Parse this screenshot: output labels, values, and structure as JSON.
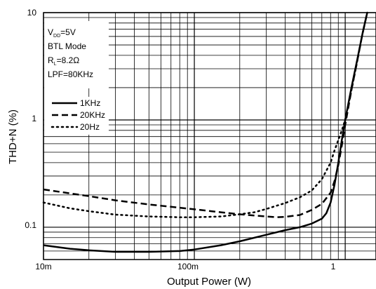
{
  "chart_data": {
    "type": "line",
    "x_scale": "log",
    "y_scale": "log",
    "xlim": [
      0.01,
      1.6
    ],
    "ylim": [
      0.05,
      10
    ],
    "xlabel": "Output Power (W)",
    "ylabel": "THD+N (%)",
    "x_tick_labels": [
      "10m",
      "100m",
      "1"
    ],
    "y_tick_labels": [
      "10",
      "1",
      "0.1"
    ],
    "grid": true,
    "legend_position": "upper-left",
    "conditions": {
      "vdd_main": "V",
      "vdd_sub": "DD",
      "vdd_value": "=5V",
      "mode": "BTL Mode",
      "rl_main": "R",
      "rl_sub": "L",
      "rl_value": "=8.2Ω",
      "lpf": "LPF=80KHz"
    },
    "series": [
      {
        "name": "1KHz",
        "style": "solid",
        "points": [
          [
            0.01,
            0.068
          ],
          [
            0.015,
            0.063
          ],
          [
            0.02,
            0.061
          ],
          [
            0.03,
            0.059
          ],
          [
            0.05,
            0.059
          ],
          [
            0.08,
            0.06
          ],
          [
            0.1,
            0.062
          ],
          [
            0.15,
            0.068
          ],
          [
            0.2,
            0.074
          ],
          [
            0.3,
            0.085
          ],
          [
            0.4,
            0.094
          ],
          [
            0.5,
            0.1
          ],
          [
            0.6,
            0.108
          ],
          [
            0.7,
            0.12
          ],
          [
            0.75,
            0.135
          ],
          [
            0.8,
            0.17
          ],
          [
            0.85,
            0.25
          ],
          [
            0.9,
            0.4
          ],
          [
            0.95,
            0.65
          ],
          [
            1.0,
            1.0
          ],
          [
            1.1,
            2.0
          ],
          [
            1.2,
            3.6
          ],
          [
            1.3,
            6.3
          ],
          [
            1.4,
            10.0
          ]
        ]
      },
      {
        "name": "20KHz",
        "style": "dashed",
        "points": [
          [
            0.01,
            0.225
          ],
          [
            0.02,
            0.195
          ],
          [
            0.03,
            0.178
          ],
          [
            0.05,
            0.163
          ],
          [
            0.08,
            0.152
          ],
          [
            0.1,
            0.147
          ],
          [
            0.15,
            0.138
          ],
          [
            0.2,
            0.132
          ],
          [
            0.3,
            0.126
          ],
          [
            0.35,
            0.124
          ],
          [
            0.4,
            0.125
          ],
          [
            0.5,
            0.13
          ],
          [
            0.6,
            0.145
          ],
          [
            0.7,
            0.165
          ],
          [
            0.8,
            0.21
          ],
          [
            0.85,
            0.27
          ],
          [
            0.9,
            0.38
          ],
          [
            0.95,
            0.58
          ],
          [
            1.0,
            0.9
          ],
          [
            1.1,
            1.9
          ],
          [
            1.2,
            3.5
          ],
          [
            1.3,
            6.3
          ],
          [
            1.4,
            10.0
          ]
        ]
      },
      {
        "name": "20Hz",
        "style": "dotted",
        "points": [
          [
            0.01,
            0.17
          ],
          [
            0.015,
            0.15
          ],
          [
            0.02,
            0.141
          ],
          [
            0.03,
            0.131
          ],
          [
            0.05,
            0.126
          ],
          [
            0.08,
            0.124
          ],
          [
            0.1,
            0.124
          ],
          [
            0.15,
            0.126
          ],
          [
            0.2,
            0.132
          ],
          [
            0.25,
            0.138
          ],
          [
            0.3,
            0.148
          ],
          [
            0.4,
            0.168
          ],
          [
            0.5,
            0.19
          ],
          [
            0.6,
            0.22
          ],
          [
            0.7,
            0.28
          ],
          [
            0.8,
            0.4
          ],
          [
            0.85,
            0.52
          ],
          [
            0.9,
            0.65
          ],
          [
            0.95,
            0.8
          ],
          [
            1.0,
            1.0
          ],
          [
            1.1,
            1.9
          ],
          [
            1.2,
            3.5
          ],
          [
            1.3,
            6.3
          ],
          [
            1.4,
            10.0
          ]
        ]
      }
    ]
  }
}
